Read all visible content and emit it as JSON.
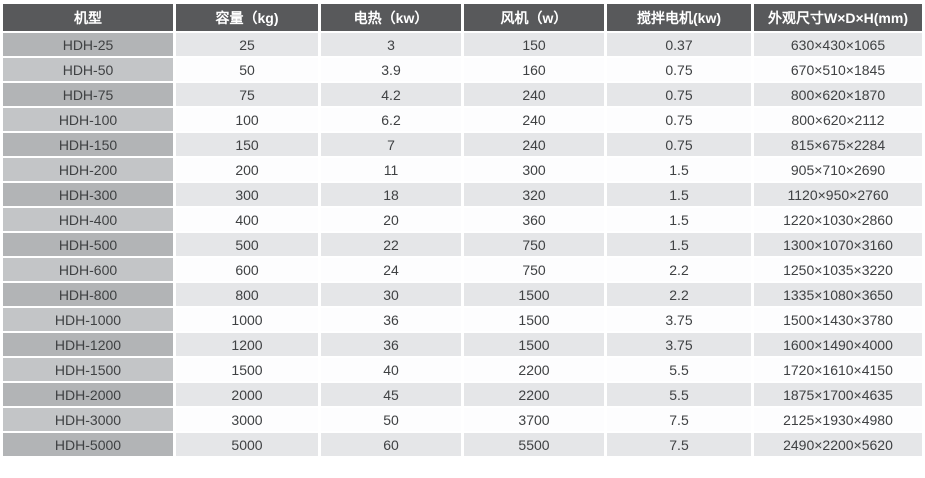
{
  "table": {
    "headers": [
      "机型",
      "容量（kg)",
      "电热（kw）",
      "风机（w）",
      "搅拌电机(kw)",
      "外观尺寸W×D×H(mm)"
    ],
    "rows": [
      [
        "HDH-25",
        "25",
        "3",
        "150",
        "0.37",
        "630×430×1065"
      ],
      [
        "HDH-50",
        "50",
        "3.9",
        "160",
        "0.75",
        "670×510×1845"
      ],
      [
        "HDH-75",
        "75",
        "4.2",
        "240",
        "0.75",
        "800×620×1870"
      ],
      [
        "HDH-100",
        "100",
        "6.2",
        "240",
        "0.75",
        "800×620×2112"
      ],
      [
        "HDH-150",
        "150",
        "7",
        "240",
        "0.75",
        "815×675×2284"
      ],
      [
        "HDH-200",
        "200",
        "11",
        "300",
        "1.5",
        "905×710×2690"
      ],
      [
        "HDH-300",
        "300",
        "18",
        "320",
        "1.5",
        "1120×950×2760"
      ],
      [
        "HDH-400",
        "400",
        "20",
        "360",
        "1.5",
        "1220×1030×2860"
      ],
      [
        "HDH-500",
        "500",
        "22",
        "750",
        "1.5",
        "1300×1070×3160"
      ],
      [
        "HDH-600",
        "600",
        "24",
        "750",
        "2.2",
        "1250×1035×3220"
      ],
      [
        "HDH-800",
        "800",
        "30",
        "1500",
        "2.2",
        "1335×1080×3650"
      ],
      [
        "HDH-1000",
        "1000",
        "36",
        "1500",
        "3.75",
        "1500×1430×3780"
      ],
      [
        "HDH-1200",
        "1200",
        "36",
        "1500",
        "3.75",
        "1600×1490×4000"
      ],
      [
        "HDH-1500",
        "1500",
        "40",
        "2200",
        "5.5",
        "1720×1610×4150"
      ],
      [
        "HDH-2000",
        "2000",
        "45",
        "2200",
        "5.5",
        "1875×1700×4635"
      ],
      [
        "HDH-3000",
        "3000",
        "50",
        "3700",
        "7.5",
        "2125×1930×4980"
      ],
      [
        "HDH-5000",
        "5000",
        "60",
        "5500",
        "7.5",
        "2490×2200×5620"
      ]
    ]
  },
  "colors": {
    "header_bg": "#58595b",
    "header_text": "#ffffff",
    "model_col_odd": "#b2b4b6",
    "model_col_even": "#c3c5c7",
    "data_col_odd": "#e5e6e8",
    "data_col_even": "#fdfdfe",
    "body_text": "#3f4143"
  }
}
